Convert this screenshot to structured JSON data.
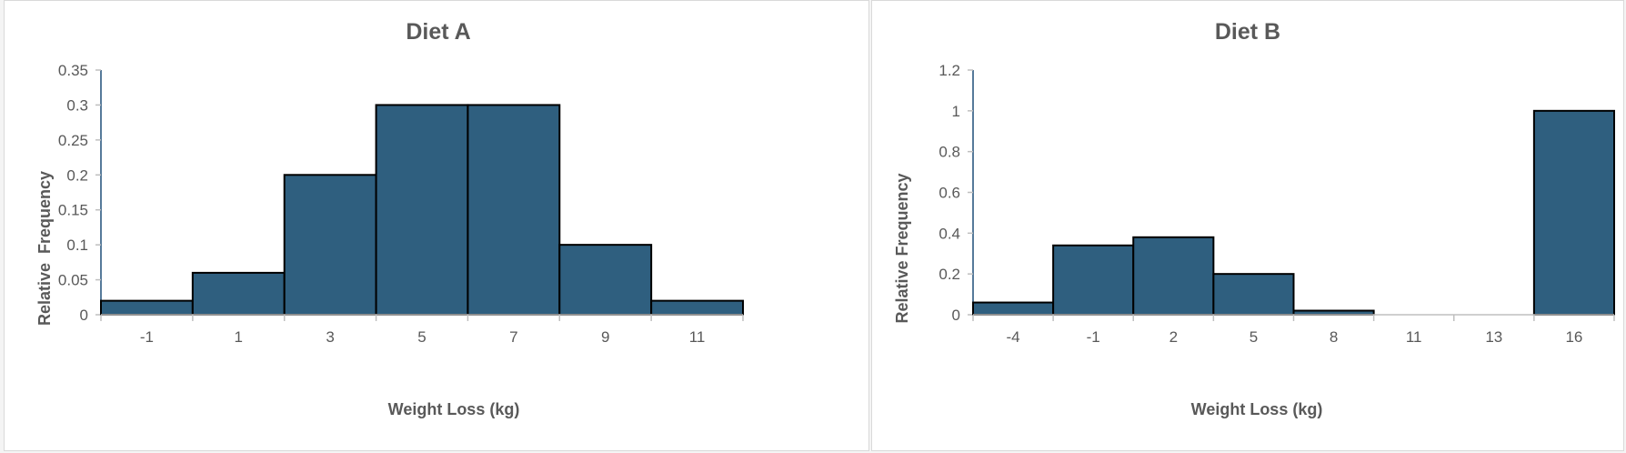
{
  "chart_data": [
    {
      "type": "bar",
      "title": "Diet A",
      "xlabel": "Weight Loss (kg)",
      "ylabel": "Relative  Frequency",
      "categories": [
        "-1",
        "1",
        "3",
        "5",
        "7",
        "9",
        "11"
      ],
      "values": [
        0.02,
        0.06,
        0.2,
        0.3,
        0.3,
        0.1,
        0.02
      ],
      "ylim": [
        0,
        0.35
      ],
      "yticks": [
        "0",
        "0.05",
        "0.1",
        "0.15",
        "0.2",
        "0.25",
        "0.3",
        "0.35"
      ],
      "ytick_values": [
        0,
        0.05,
        0.1,
        0.15,
        0.2,
        0.25,
        0.3,
        0.35
      ],
      "grid": false,
      "bar_color": "#2f5f7f"
    },
    {
      "type": "bar",
      "title": "Diet B",
      "xlabel": "Weight Loss (kg)",
      "ylabel": "Relative Frequency",
      "categories": [
        "-4",
        "-1",
        "2",
        "5",
        "8",
        "11",
        "13",
        "16"
      ],
      "values": [
        0.06,
        0.34,
        0.38,
        0.2,
        0.02,
        0,
        0,
        1.0
      ],
      "ylim": [
        0,
        1.2
      ],
      "yticks": [
        "0",
        "0.2",
        "0.4",
        "0.6",
        "0.8",
        "1",
        "1.2"
      ],
      "ytick_values": [
        0,
        0.2,
        0.4,
        0.6,
        0.8,
        1.0,
        1.2
      ],
      "grid": false,
      "bar_color": "#2f5f7f"
    }
  ]
}
